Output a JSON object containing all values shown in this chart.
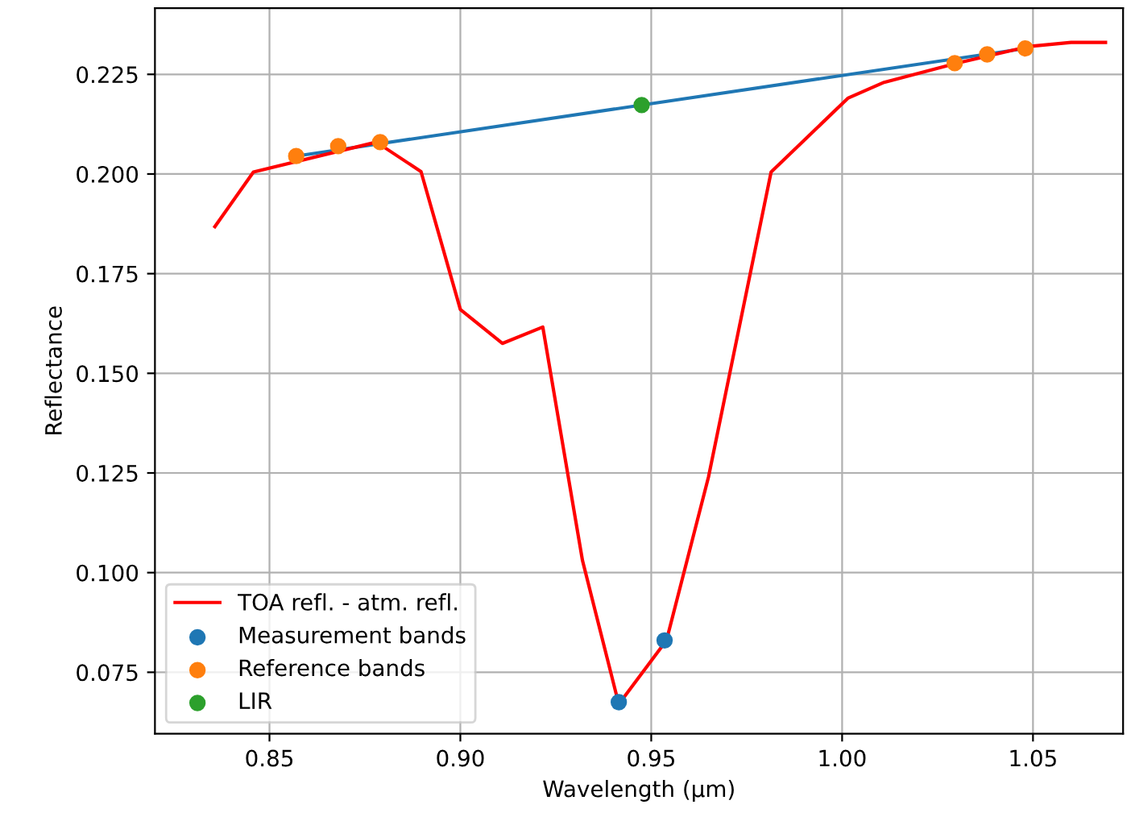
{
  "chart_data": {
    "type": "line",
    "xlabel": "Wavelength (µm)",
    "ylabel": "Reflectance",
    "xlim": [
      0.82,
      1.0736
    ],
    "ylim": [
      0.0596,
      0.2416
    ],
    "xticks": [
      {
        "value": 0.85,
        "label": "0.85"
      },
      {
        "value": 0.9,
        "label": "0.90"
      },
      {
        "value": 0.95,
        "label": "0.95"
      },
      {
        "value": 1.0,
        "label": "1.00"
      },
      {
        "value": 1.05,
        "label": "1.05"
      }
    ],
    "yticks": [
      0.075,
      {
        "value": 0.1,
        "label": "0.100"
      },
      0.125,
      {
        "value": 0.15,
        "label": "0.150"
      },
      0.175,
      {
        "value": 0.2,
        "label": "0.200"
      },
      0.225
    ],
    "grid": true,
    "legend": "bottom left",
    "series": [
      {
        "color": "#1f77b4",
        "x": [
          0.857,
          1.048
        ],
        "values": [
          0.2045,
          0.2315
        ]
      },
      {
        "name": "TOA refl. - atm. refl.",
        "color": "#ff0000",
        "x": [
          0.8357,
          0.8458,
          0.878,
          0.8897,
          0.9,
          0.911,
          0.9216,
          0.932,
          0.9415,
          0.954,
          0.965,
          0.9814,
          1.0015,
          1.011,
          1.03,
          1.049,
          1.06,
          1.069
        ],
        "values": [
          0.1868,
          0.2005,
          0.208,
          0.2006,
          0.166,
          0.1575,
          0.1616,
          0.103,
          0.067,
          0.083,
          0.124,
          0.2005,
          0.219,
          0.223,
          0.2278,
          0.232,
          0.233,
          0.233
        ]
      },
      {
        "type": "scatter",
        "name": "Measurement bands",
        "color": "#1f77b4",
        "x": [
          0.9415,
          0.9535
        ],
        "values": [
          0.0675,
          0.083
        ]
      },
      {
        "type": "scatter",
        "name": "Reference bands",
        "color": "#ff7f0e",
        "x": [
          0.857,
          0.868,
          0.879,
          1.0295,
          1.038,
          1.048
        ],
        "values": [
          0.2045,
          0.207,
          0.208,
          0.2278,
          0.23,
          0.2315
        ]
      },
      {
        "type": "scatter",
        "name": "LIR",
        "color": "#2ca02c",
        "x": [
          0.9475
        ],
        "values": [
          0.2173
        ]
      }
    ]
  }
}
